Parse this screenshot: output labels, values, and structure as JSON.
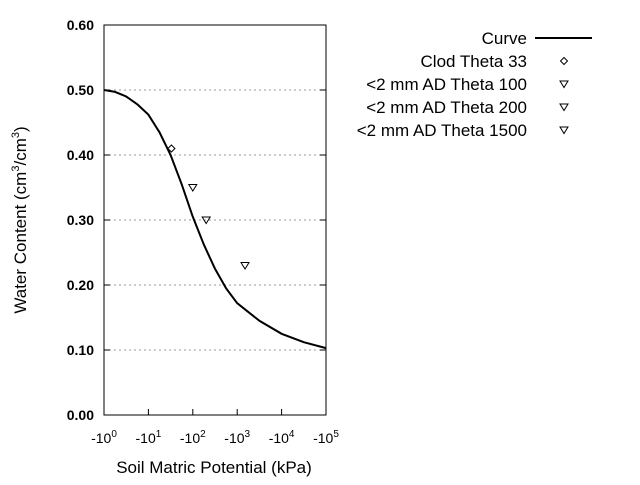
{
  "chart_data": {
    "type": "scatter",
    "title": "",
    "xlabel": "Soil Matric Potential (kPa)",
    "ylabel_main": "Water Content (cm",
    "ylabel_sup1": "3",
    "ylabel_mid": "/cm",
    "ylabel_sup2": "3",
    "ylabel_end": ")",
    "x_scale": "log (negative)",
    "xlim": [
      -1,
      -100000
    ],
    "ylim": [
      0,
      0.6
    ],
    "grid": "horizontal dotted",
    "legend_position": "top-right, outside",
    "x_ticks": [
      {
        "base": "-10",
        "exp": "0",
        "value": -1
      },
      {
        "base": "-10",
        "exp": "1",
        "value": -10
      },
      {
        "base": "-10",
        "exp": "2",
        "value": -100
      },
      {
        "base": "-10",
        "exp": "3",
        "value": -1000
      },
      {
        "base": "-10",
        "exp": "4",
        "value": -10000
      },
      {
        "base": "-10",
        "exp": "5",
        "value": -100000
      }
    ],
    "y_ticks": [
      "0.00",
      "0.10",
      "0.20",
      "0.30",
      "0.40",
      "0.50",
      "0.60"
    ],
    "series": [
      {
        "name": "Curve",
        "kind": "line",
        "color": "#000000",
        "x": [
          -1,
          -1.78,
          -3.16,
          -5.62,
          -10,
          -17.8,
          -31.6,
          -56.2,
          -100,
          -178,
          -316,
          -562,
          -1000,
          -3162,
          -10000,
          -31623,
          -100000
        ],
        "y": [
          0.5,
          0.497,
          0.49,
          0.478,
          0.462,
          0.435,
          0.4,
          0.355,
          0.305,
          0.262,
          0.225,
          0.195,
          0.172,
          0.145,
          0.125,
          0.112,
          0.103
        ]
      },
      {
        "name": "Clod Theta 33",
        "kind": "diamond",
        "x": [
          -33
        ],
        "y": [
          0.41
        ]
      },
      {
        "name": "<2 mm AD Theta 100",
        "kind": "triangle-down",
        "x": [
          -100
        ],
        "y": [
          0.35
        ]
      },
      {
        "name": "<2 mm AD Theta 200",
        "kind": "triangle-down",
        "x": [
          -200
        ],
        "y": [
          0.3
        ]
      },
      {
        "name": "<2 mm AD Theta 1500",
        "kind": "triangle-down",
        "x": [
          -1500
        ],
        "y": [
          0.23
        ]
      }
    ]
  }
}
